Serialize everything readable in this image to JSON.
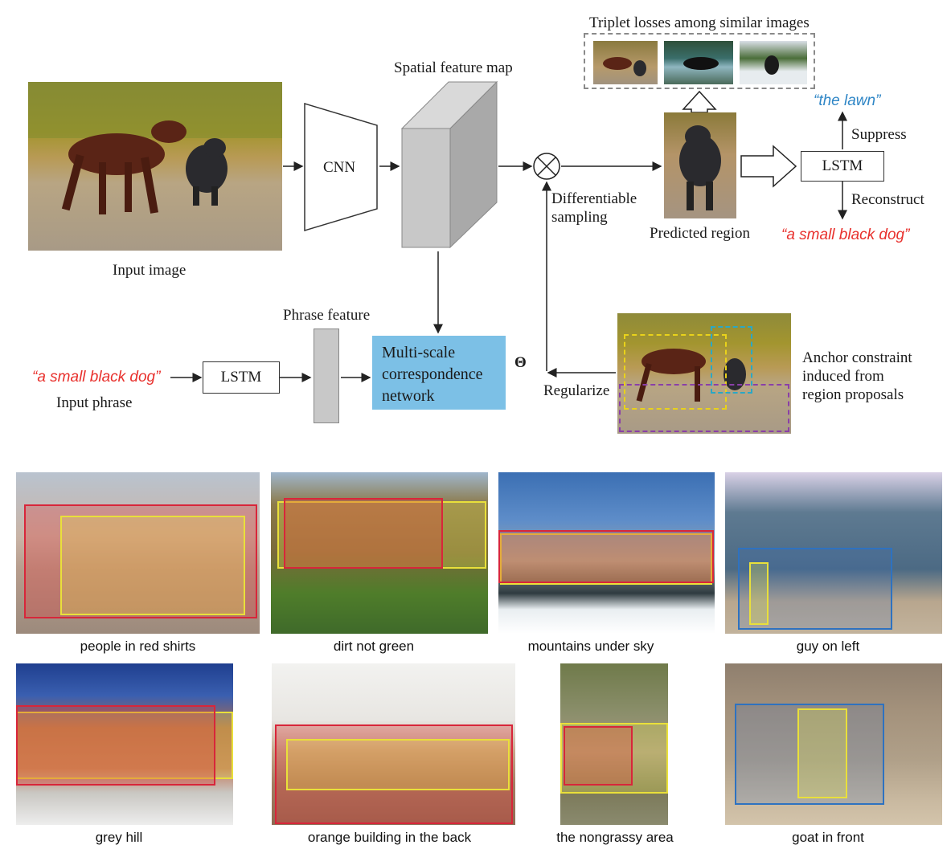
{
  "top": {
    "input_image_label": "Input image",
    "cnn_label": "CNN",
    "spatial_feature_map_label": "Spatial feature map",
    "differentiable_sampling_line1": "Differentiable",
    "differentiable_sampling_line2": "sampling",
    "triplet_label": "Triplet losses among similar images",
    "predicted_region_label": "Predicted region",
    "lstm_decoder_label": "LSTM",
    "suppress_label": "Suppress",
    "reconstruct_label": "Reconstruct",
    "suppress_phrase": "“the lawn”",
    "reconstruct_phrase": "“a small black dog”",
    "input_phrase_text": "“a small black dog”",
    "input_phrase_label": "Input phrase",
    "lstm_encoder_label": "LSTM",
    "phrase_feature_label": "Phrase feature",
    "msc_line1": "Multi-scale",
    "msc_line2": "correspondence",
    "msc_line3": "network",
    "theta_label": "Θ",
    "regularize_label": "Regularize",
    "anchor_line1": "Anchor constraint",
    "anchor_line2": "induced from",
    "anchor_line3": "region proposals"
  },
  "examples": [
    {
      "caption": "people in red shirts"
    },
    {
      "caption": "dirt not green"
    },
    {
      "caption": "mountains under sky"
    },
    {
      "caption": "guy on left"
    },
    {
      "caption": "grey hill"
    },
    {
      "caption": "orange building in the back"
    },
    {
      "caption": "the nongrassy area"
    },
    {
      "caption": "goat in front"
    }
  ],
  "colors": {
    "phrase_red": "#e8302c",
    "phrase_blue": "#2f86c6",
    "msc_box": "#7cc0e6",
    "feature_gray": "#c8c8c8",
    "box_red": "#d8263a",
    "box_yellow": "#e9e03a",
    "box_blue": "#2e72c0"
  }
}
